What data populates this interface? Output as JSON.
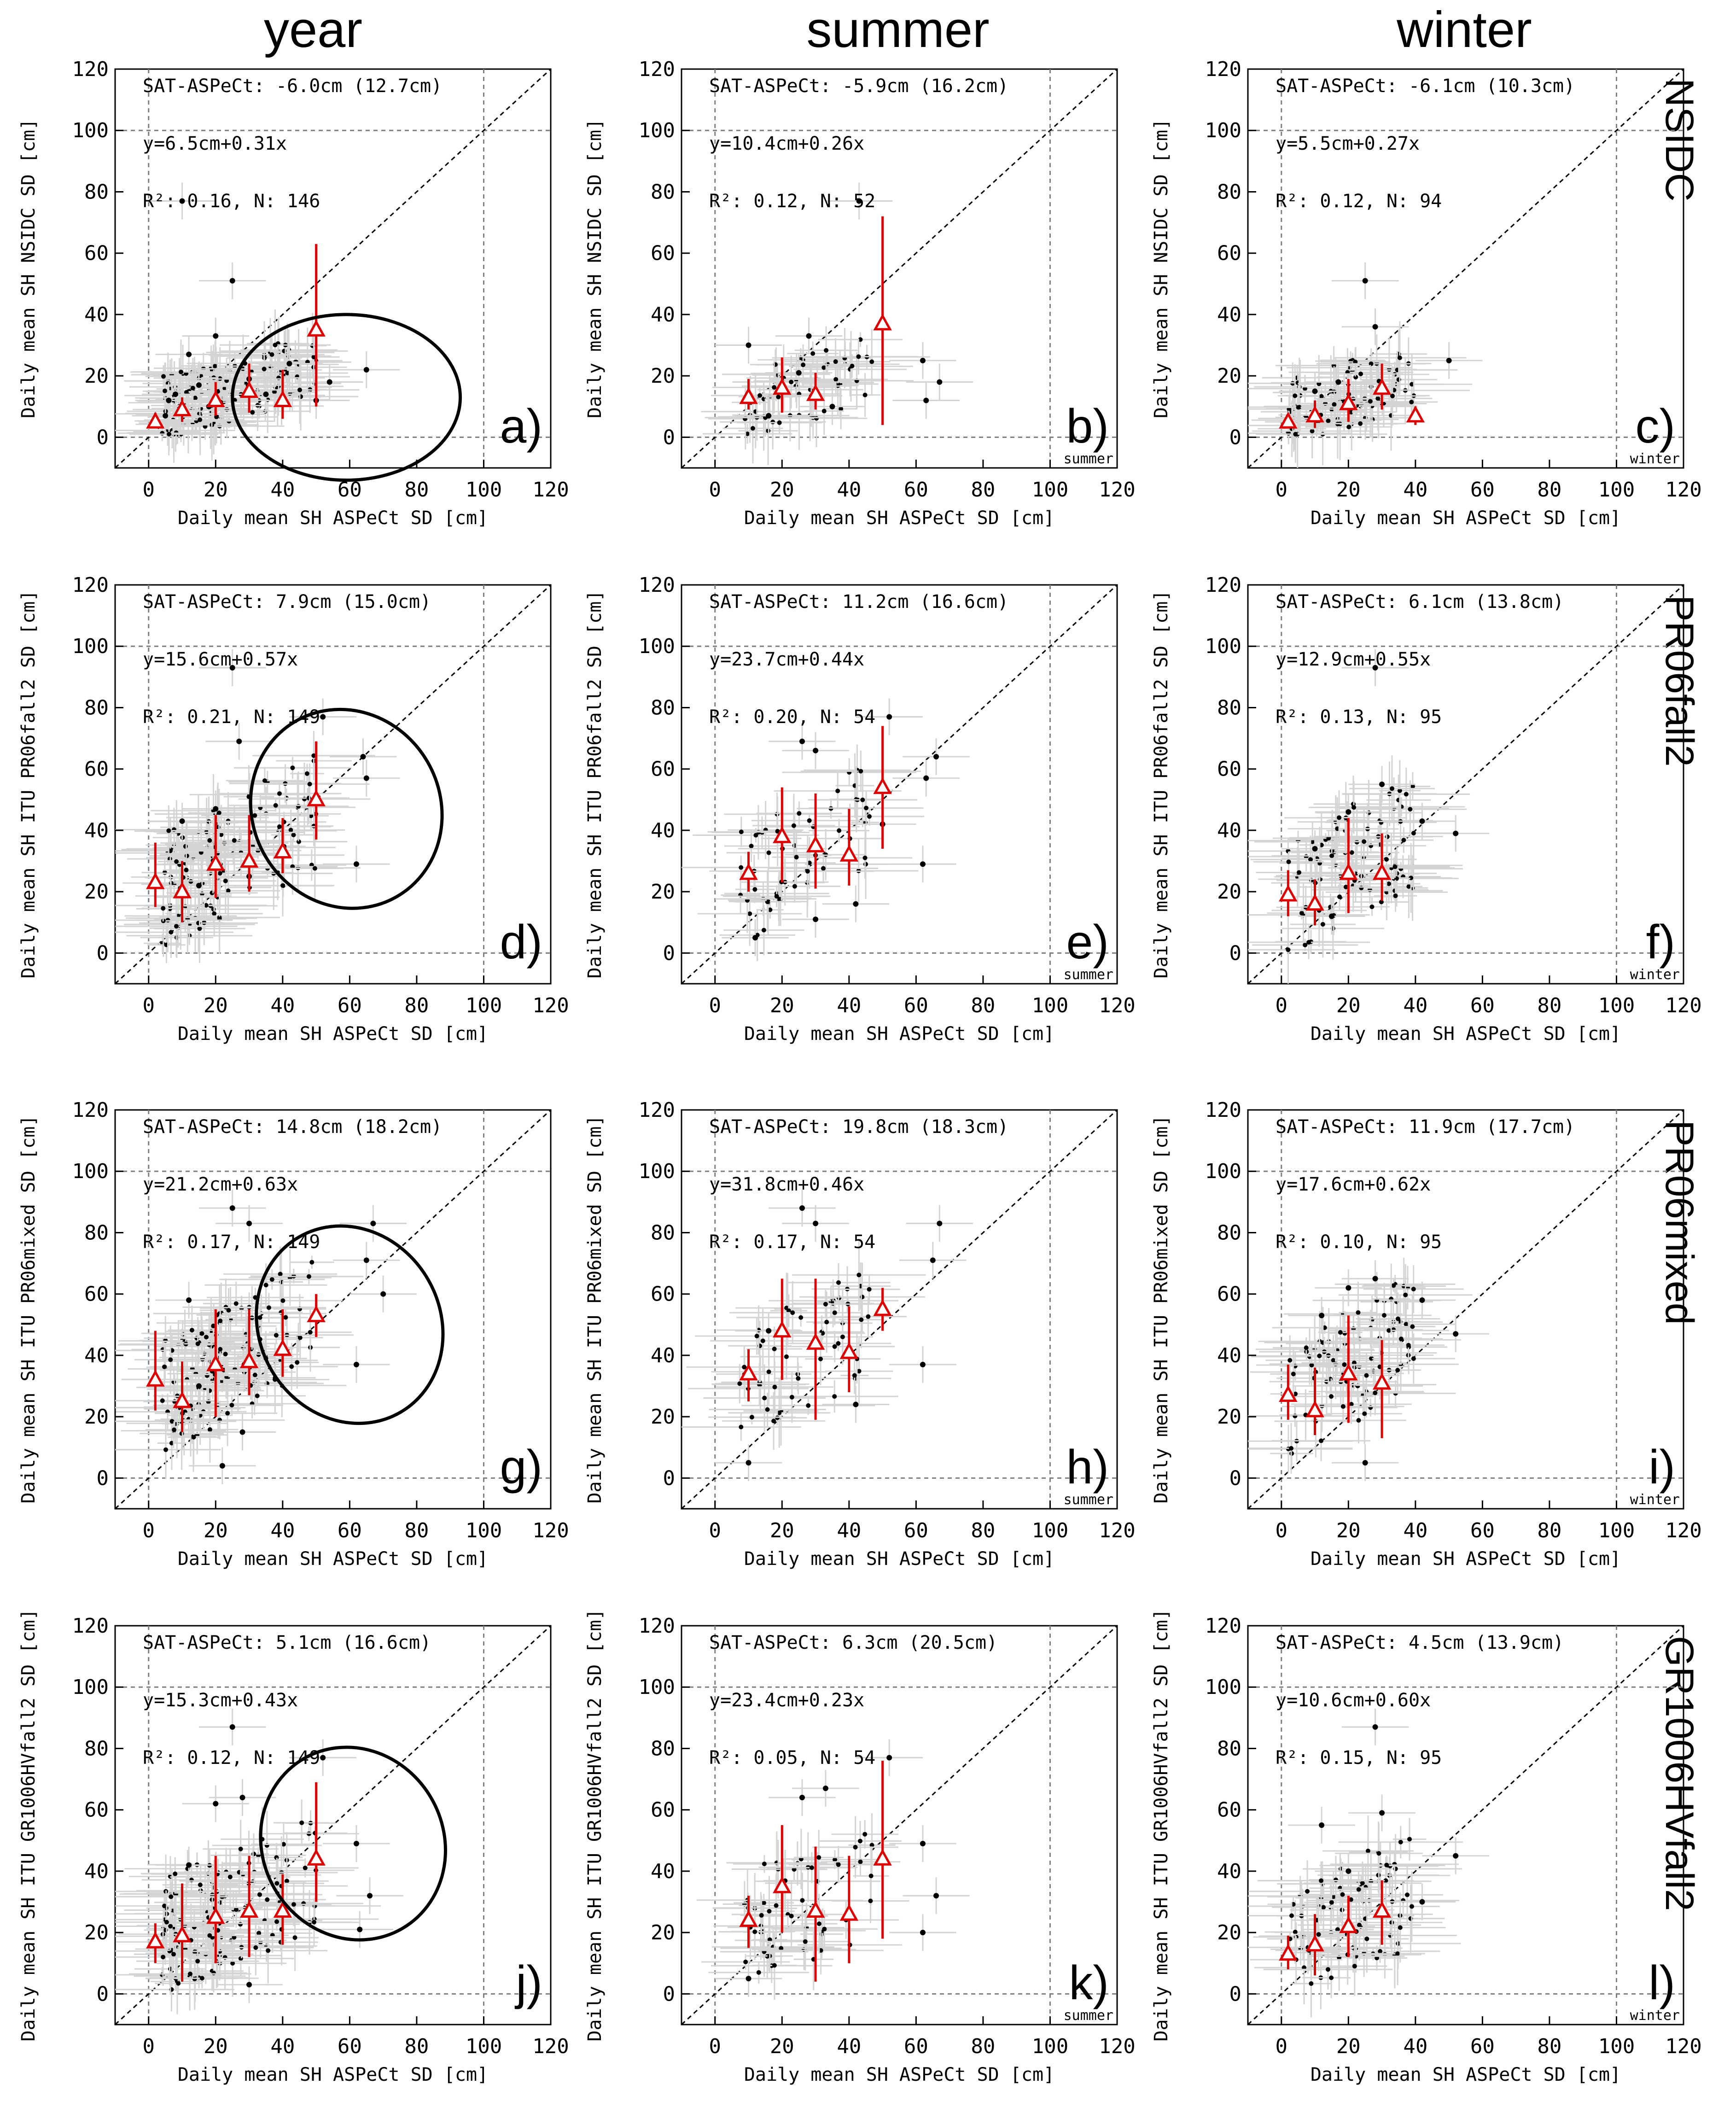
{
  "figure": {
    "column_titles": [
      "year",
      "summer",
      "winter"
    ],
    "row_labels": [
      "NSIDC",
      "PR06fall2",
      "PR06mixed",
      "GR1006HVfall2"
    ],
    "xlabel": "Daily mean SH ASPeCt SD [cm]",
    "ylabels": [
      "Daily mean SH NSIDC SD [cm]",
      "Daily mean SH ITU PR06fall2 SD [cm]",
      "Daily mean SH ITU PR06mixed SD [cm]",
      "Daily mean SH ITU GR1006HVfall2 SD [cm]"
    ],
    "colors": {
      "points": "#000000",
      "errorbars": "#d4d4d4",
      "bins": "#e00000",
      "grid": "#7f7f7f"
    }
  },
  "chart_data": [
    {
      "type": "scatter",
      "id": "a",
      "panel_label": "a)",
      "season_tag": "",
      "row": 0,
      "col": 0,
      "stats": [
        "SAT-ASPeCt: -6.0cm (12.7cm)",
        "y=6.5cm+0.31x",
        "R²: 0.16, N: 146"
      ],
      "xlim": [
        -10,
        120
      ],
      "ylim": [
        -10,
        120
      ],
      "xticks": [
        0,
        20,
        40,
        60,
        80,
        100,
        120
      ],
      "yticks": [
        0,
        20,
        40,
        60,
        80,
        100,
        120
      ],
      "bins": {
        "x": [
          2,
          10,
          20,
          30,
          40,
          50
        ],
        "y": [
          5,
          9,
          12,
          15,
          12,
          35
        ],
        "lo": [
          3,
          5,
          7,
          8,
          6,
          10
        ],
        "hi": [
          8,
          13,
          18,
          24,
          22,
          63
        ]
      },
      "points": [
        [
          5,
          7
        ],
        [
          10,
          77
        ],
        [
          25,
          51
        ],
        [
          30,
          19
        ],
        [
          50,
          12
        ],
        [
          54,
          18
        ],
        [
          65,
          22
        ],
        [
          20,
          33
        ],
        [
          42,
          24
        ],
        [
          12,
          27
        ],
        [
          35,
          14
        ],
        [
          15,
          17
        ],
        [
          8,
          14
        ],
        [
          6,
          12
        ],
        [
          18,
          10
        ]
      ],
      "ellipse": {
        "cx": 59,
        "cy": 13,
        "rx": 34,
        "ry": 27
      }
    },
    {
      "type": "scatter",
      "id": "b",
      "panel_label": "b)",
      "season_tag": "summer",
      "row": 0,
      "col": 1,
      "stats": [
        "SAT-ASPeCt: -5.9cm (16.2cm)",
        "y=10.4cm+0.26x",
        "R²: 0.12, N: 52"
      ],
      "xlim": [
        -10,
        120
      ],
      "ylim": [
        -10,
        120
      ],
      "xticks": [
        0,
        20,
        40,
        60,
        80,
        100,
        120
      ],
      "yticks": [
        0,
        20,
        40,
        60,
        80,
        100,
        120
      ],
      "bins": {
        "x": [
          10,
          20,
          30,
          50
        ],
        "y": [
          13,
          16,
          14,
          37
        ],
        "lo": [
          9,
          8,
          9,
          4
        ],
        "hi": [
          19,
          26,
          21,
          72
        ]
      },
      "points": [
        [
          43,
          77
        ],
        [
          62,
          25
        ],
        [
          67,
          18
        ],
        [
          63,
          12
        ],
        [
          10,
          30
        ],
        [
          28,
          33
        ],
        [
          16,
          7
        ],
        [
          25,
          21
        ],
        [
          35,
          10
        ]
      ]
    },
    {
      "type": "scatter",
      "id": "c",
      "panel_label": "c)",
      "season_tag": "winter",
      "row": 0,
      "col": 2,
      "stats": [
        "SAT-ASPeCt: -6.1cm (10.3cm)",
        "y=5.5cm+0.27x",
        "R²: 0.12, N: 94"
      ],
      "xlim": [
        -10,
        120
      ],
      "ylim": [
        -10,
        120
      ],
      "xticks": [
        0,
        20,
        40,
        60,
        80,
        100,
        120
      ],
      "yticks": [
        0,
        20,
        40,
        60,
        80,
        100,
        120
      ],
      "bins": {
        "x": [
          2,
          10,
          20,
          30,
          40
        ],
        "y": [
          5,
          7,
          11,
          16,
          7
        ],
        "lo": [
          3,
          3,
          5,
          9,
          4
        ],
        "hi": [
          7,
          12,
          19,
          24,
          10
        ]
      },
      "points": [
        [
          25,
          51
        ],
        [
          28,
          36
        ],
        [
          50,
          25
        ],
        [
          10,
          15
        ],
        [
          17,
          18
        ]
      ]
    },
    {
      "type": "scatter",
      "id": "d",
      "panel_label": "d)",
      "season_tag": "",
      "row": 1,
      "col": 0,
      "stats": [
        "SAT-ASPeCt: 7.9cm (15.0cm)",
        "y=15.6cm+0.57x",
        "R²: 0.21, N: 149"
      ],
      "xlim": [
        -10,
        120
      ],
      "ylim": [
        -10,
        120
      ],
      "xticks": [
        0,
        20,
        40,
        60,
        80,
        100,
        120
      ],
      "yticks": [
        0,
        20,
        40,
        60,
        80,
        100,
        120
      ],
      "bins": {
        "x": [
          2,
          10,
          20,
          30,
          40,
          50
        ],
        "y": [
          23,
          20,
          29,
          30,
          33,
          50
        ],
        "lo": [
          15,
          10,
          18,
          20,
          26,
          37
        ],
        "hi": [
          36,
          30,
          45,
          45,
          44,
          69
        ],
        "offset": -1
      },
      "points": [
        [
          25,
          93
        ],
        [
          27,
          69
        ],
        [
          52,
          77
        ],
        [
          64,
          64
        ],
        [
          65,
          57
        ],
        [
          62,
          29
        ],
        [
          10,
          43
        ],
        [
          20,
          47
        ],
        [
          30,
          25
        ],
        [
          15,
          22
        ]
      ],
      "ellipse": {
        "cx": 59,
        "cy": 47,
        "rx": 28,
        "ry": 33,
        "rot": 30
      }
    },
    {
      "type": "scatter",
      "id": "e",
      "panel_label": "e)",
      "season_tag": "summer",
      "row": 1,
      "col": 1,
      "stats": [
        "SAT-ASPeCt: 11.2cm (16.6cm)",
        "y=23.7cm+0.44x",
        "R²: 0.20, N: 54"
      ],
      "xlim": [
        -10,
        120
      ],
      "ylim": [
        -10,
        120
      ],
      "xticks": [
        0,
        20,
        40,
        60,
        80,
        100,
        120
      ],
      "yticks": [
        0,
        20,
        40,
        60,
        80,
        100,
        120
      ],
      "bins": {
        "x": [
          10,
          20,
          30,
          40,
          50
        ],
        "y": [
          26,
          38,
          35,
          32,
          54
        ],
        "lo": [
          20,
          23,
          21,
          22,
          34
        ],
        "hi": [
          33,
          54,
          52,
          47,
          74
        ]
      },
      "points": [
        [
          26,
          69
        ],
        [
          30,
          66
        ],
        [
          52,
          77
        ],
        [
          63,
          57
        ],
        [
          62,
          29
        ],
        [
          30,
          11
        ],
        [
          42,
          16
        ],
        [
          12,
          5
        ],
        [
          66,
          64
        ],
        [
          50,
          42
        ]
      ]
    },
    {
      "type": "scatter",
      "id": "f",
      "panel_label": "f)",
      "season_tag": "winter",
      "row": 1,
      "col": 2,
      "stats": [
        "SAT-ASPeCt: 6.1cm (13.8cm)",
        "y=12.9cm+0.55x",
        "R²: 0.13, N: 95"
      ],
      "xlim": [
        -10,
        120
      ],
      "ylim": [
        -10,
        120
      ],
      "xticks": [
        0,
        20,
        40,
        60,
        80,
        100,
        120
      ],
      "yticks": [
        0,
        20,
        40,
        60,
        80,
        100,
        120
      ],
      "bins": {
        "x": [
          2,
          10,
          20,
          30
        ],
        "y": [
          19,
          16,
          26,
          26
        ],
        "lo": [
          12,
          9,
          13,
          17
        ],
        "hi": [
          27,
          24,
          44,
          39
        ]
      },
      "points": [
        [
          30,
          55
        ],
        [
          28,
          93
        ],
        [
          52,
          39
        ],
        [
          42,
          43
        ],
        [
          20,
          46
        ],
        [
          10,
          34
        ],
        [
          15,
          12
        ]
      ]
    },
    {
      "type": "scatter",
      "id": "g",
      "panel_label": "g)",
      "season_tag": "",
      "row": 2,
      "col": 0,
      "stats": [
        "SAT-ASPeCt: 14.8cm (18.2cm)",
        "y=21.2cm+0.63x",
        "R²: 0.17, N: 149"
      ],
      "xlim": [
        -10,
        120
      ],
      "ylim": [
        -10,
        120
      ],
      "xticks": [
        0,
        20,
        40,
        60,
        80,
        100,
        120
      ],
      "yticks": [
        0,
        20,
        40,
        60,
        80,
        100,
        120
      ],
      "bins": {
        "x": [
          2,
          10,
          20,
          30,
          40,
          50
        ],
        "y": [
          32,
          25,
          37,
          38,
          42,
          53
        ],
        "lo": [
          22,
          15,
          20,
          27,
          33,
          46
        ],
        "hi": [
          48,
          38,
          55,
          55,
          55,
          60
        ],
        "offset": -1
      },
      "points": [
        [
          25,
          88
        ],
        [
          30,
          83
        ],
        [
          67,
          83
        ],
        [
          65,
          71
        ],
        [
          70,
          60
        ],
        [
          62,
          37
        ],
        [
          12,
          58
        ],
        [
          15,
          30
        ],
        [
          28,
          15
        ],
        [
          22,
          4
        ]
      ],
      "ellipse": {
        "cx": 60,
        "cy": 50,
        "rx": 27,
        "ry": 33,
        "rot": 30
      }
    },
    {
      "type": "scatter",
      "id": "h",
      "panel_label": "h)",
      "season_tag": "summer",
      "row": 2,
      "col": 1,
      "stats": [
        "SAT-ASPeCt: 19.8cm (18.3cm)",
        "y=31.8cm+0.46x",
        "R²: 0.17, N: 54"
      ],
      "xlim": [
        -10,
        120
      ],
      "ylim": [
        -10,
        120
      ],
      "xticks": [
        0,
        20,
        40,
        60,
        80,
        100,
        120
      ],
      "yticks": [
        0,
        20,
        40,
        60,
        80,
        100,
        120
      ],
      "bins": {
        "x": [
          10,
          20,
          30,
          40,
          50
        ],
        "y": [
          34,
          48,
          44,
          41,
          55
        ],
        "lo": [
          25,
          32,
          19,
          28,
          48
        ],
        "hi": [
          42,
          65,
          65,
          56,
          62
        ]
      },
      "points": [
        [
          26,
          88
        ],
        [
          30,
          83
        ],
        [
          67,
          83
        ],
        [
          65,
          71
        ],
        [
          62,
          37
        ],
        [
          10,
          5
        ],
        [
          42,
          24
        ],
        [
          16,
          48
        ]
      ]
    },
    {
      "type": "scatter",
      "id": "i",
      "panel_label": "i)",
      "season_tag": "winter",
      "row": 2,
      "col": 2,
      "stats": [
        "SAT-ASPeCt: 11.9cm (17.7cm)",
        "y=17.6cm+0.62x",
        "R²: 0.10, N: 95"
      ],
      "xlim": [
        -10,
        120
      ],
      "ylim": [
        -10,
        120
      ],
      "xticks": [
        0,
        20,
        40,
        60,
        80,
        100,
        120
      ],
      "yticks": [
        0,
        20,
        40,
        60,
        80,
        100,
        120
      ],
      "bins": {
        "x": [
          2,
          10,
          20,
          30
        ],
        "y": [
          27,
          22,
          34,
          31
        ],
        "lo": [
          19,
          14,
          18,
          13
        ],
        "hi": [
          37,
          36,
          53,
          45
        ]
      },
      "points": [
        [
          28,
          65
        ],
        [
          52,
          47
        ],
        [
          42,
          58
        ],
        [
          20,
          62
        ],
        [
          12,
          53
        ],
        [
          25,
          5
        ]
      ]
    },
    {
      "type": "scatter",
      "id": "j",
      "panel_label": "j)",
      "season_tag": "",
      "row": 3,
      "col": 0,
      "stats": [
        "SAT-ASPeCt: 5.1cm (16.6cm)",
        "y=15.3cm+0.43x",
        "R²: 0.12, N: 149"
      ],
      "xlim": [
        -10,
        120
      ],
      "ylim": [
        -10,
        120
      ],
      "xticks": [
        0,
        20,
        40,
        60,
        80,
        100,
        120
      ],
      "yticks": [
        0,
        20,
        40,
        60,
        80,
        100,
        120
      ],
      "bins": {
        "x": [
          2,
          10,
          20,
          30,
          40,
          50
        ],
        "y": [
          17,
          19,
          25,
          27,
          27,
          44
        ],
        "lo": [
          10,
          4,
          10,
          12,
          16,
          30
        ],
        "hi": [
          23,
          36,
          45,
          45,
          39,
          69
        ],
        "offset": -1
      },
      "points": [
        [
          25,
          87
        ],
        [
          52,
          77
        ],
        [
          62,
          49
        ],
        [
          63,
          21
        ],
        [
          66,
          32
        ],
        [
          30,
          3
        ],
        [
          12,
          42
        ],
        [
          20,
          62
        ],
        [
          28,
          64
        ]
      ],
      "ellipse": {
        "cx": 61,
        "cy": 49,
        "rx": 27,
        "ry": 32,
        "rot": 30
      }
    },
    {
      "type": "scatter",
      "id": "k",
      "panel_label": "k)",
      "season_tag": "summer",
      "row": 3,
      "col": 1,
      "stats": [
        "SAT-ASPeCt: 6.3cm (20.5cm)",
        "y=23.4cm+0.23x",
        "R²: 0.05, N: 54"
      ],
      "xlim": [
        -10,
        120
      ],
      "ylim": [
        -10,
        120
      ],
      "xticks": [
        0,
        20,
        40,
        60,
        80,
        100,
        120
      ],
      "yticks": [
        0,
        20,
        40,
        60,
        80,
        100,
        120
      ],
      "bins": {
        "x": [
          10,
          20,
          30,
          40,
          50
        ],
        "y": [
          24,
          35,
          27,
          26,
          44
        ],
        "lo": [
          15,
          20,
          4,
          10,
          18
        ],
        "hi": [
          32,
          55,
          48,
          45,
          76
        ]
      },
      "points": [
        [
          52,
          77
        ],
        [
          62,
          49
        ],
        [
          66,
          32
        ],
        [
          62,
          20
        ],
        [
          26,
          64
        ],
        [
          33,
          67
        ],
        [
          10,
          5
        ]
      ]
    },
    {
      "type": "scatter",
      "id": "l",
      "panel_label": "l)",
      "season_tag": "winter",
      "row": 3,
      "col": 2,
      "stats": [
        "SAT-ASPeCt: 4.5cm (13.9cm)",
        "y=10.6cm+0.60x",
        "R²: 0.15, N: 95"
      ],
      "xlim": [
        -10,
        120
      ],
      "ylim": [
        -10,
        120
      ],
      "xticks": [
        0,
        20,
        40,
        60,
        80,
        100,
        120
      ],
      "yticks": [
        0,
        20,
        40,
        60,
        80,
        100,
        120
      ],
      "bins": {
        "x": [
          2,
          10,
          20,
          30
        ],
        "y": [
          13,
          16,
          22,
          27
        ],
        "lo": [
          8,
          6,
          12,
          16
        ],
        "hi": [
          19,
          26,
          32,
          37
        ]
      },
      "points": [
        [
          28,
          87
        ],
        [
          30,
          59
        ],
        [
          52,
          45
        ],
        [
          12,
          55
        ],
        [
          20,
          40
        ],
        [
          42,
          30
        ]
      ]
    }
  ]
}
